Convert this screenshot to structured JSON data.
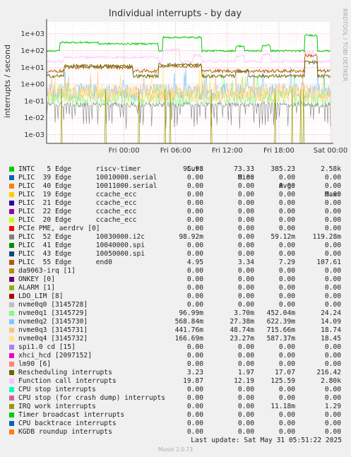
{
  "chart_data": {
    "type": "line",
    "title": "Individual interrupts - by day",
    "ylabel": "interrupts / second",
    "yscale": "log",
    "ylim": [
      0.0003,
      5000
    ],
    "yticks": [
      {
        "value": 0.001,
        "label": "1e-03"
      },
      {
        "value": 0.01,
        "label": "1e-02"
      },
      {
        "value": 0.1,
        "label": "1e-01"
      },
      {
        "value": 1,
        "label": "1e+00"
      },
      {
        "value": 10,
        "label": "1e+01"
      },
      {
        "value": 100,
        "label": "1e+02"
      },
      {
        "value": 1000,
        "label": "1e+03"
      }
    ],
    "xlim_hours": [
      -9,
      24
    ],
    "xticks": [
      {
        "hour": 0,
        "label": "Fri 00:00"
      },
      {
        "hour": 6,
        "label": "Fri 06:00"
      },
      {
        "hour": 12,
        "label": "Fri 12:00"
      },
      {
        "hour": 18,
        "label": "Fri 18:00"
      },
      {
        "hour": 24,
        "label": "Sat 00:00"
      }
    ],
    "grid": true,
    "series": [
      {
        "name": "INTC   5 Edge      riscv-timer",
        "color": "#00cc00",
        "cur": "95.98",
        "min": "73.33",
        "avg": "385.23",
        "max": "2.58k"
      },
      {
        "name": "PLIC  39 Edge      10010000.serial",
        "color": "#0066b3",
        "cur": "0.00",
        "min": "0.00",
        "avg": "0.00",
        "max": "0.00"
      },
      {
        "name": "PLIC  40 Edge      10011000.serial",
        "color": "#ff8000",
        "cur": "0.00",
        "min": "0.00",
        "avg": "0.00",
        "max": "0.00"
      },
      {
        "name": "PLIC  19 Edge      ccache_ecc",
        "color": "#ffcc00",
        "cur": "0.00",
        "min": "0.00",
        "avg": "0.00",
        "max": "0.00"
      },
      {
        "name": "PLIC  21 Edge      ccache_ecc",
        "color": "#330099",
        "cur": "0.00",
        "min": "0.00",
        "avg": "0.00",
        "max": "0.00"
      },
      {
        "name": "PLIC  22 Edge      ccache_ecc",
        "color": "#990099",
        "cur": "0.00",
        "min": "0.00",
        "avg": "0.00",
        "max": "0.00"
      },
      {
        "name": "PLIC  20 Edge      ccache_ecc",
        "color": "#ccff00",
        "cur": "0.00",
        "min": "0.00",
        "avg": "0.00",
        "max": "0.00"
      },
      {
        "name": "PCIe PME, aerdrv [0]",
        "color": "#ff0000",
        "cur": "0.00",
        "min": "0.00",
        "avg": "0.00",
        "max": "0.00"
      },
      {
        "name": "PLIC  52 Edge      10030000.i2c",
        "color": "#808080",
        "cur": "98.92m",
        "min": "0.00",
        "avg": "59.12m",
        "max": "119.28m"
      },
      {
        "name": "PLIC  41 Edge      10040000.spi",
        "color": "#008f00",
        "cur": "0.00",
        "min": "0.00",
        "avg": "0.00",
        "max": "0.00"
      },
      {
        "name": "PLIC  43 Edge      10050000.spi",
        "color": "#00487d",
        "cur": "0.00",
        "min": "0.00",
        "avg": "0.00",
        "max": "0.00"
      },
      {
        "name": "PLIC  55 Edge      end0",
        "color": "#b35a00",
        "cur": "4.95",
        "min": "3.34",
        "avg": "7.29",
        "max": "107.61"
      },
      {
        "name": "da9063-irq [1]",
        "color": "#b38f00",
        "cur": "0.00",
        "min": "0.00",
        "avg": "0.00",
        "max": "0.00"
      },
      {
        "name": "ONKEY [0]",
        "color": "#6b006b",
        "cur": "0.00",
        "min": "0.00",
        "avg": "0.00",
        "max": "0.00"
      },
      {
        "name": "ALARM [1]",
        "color": "#8fb300",
        "cur": "0.00",
        "min": "0.00",
        "avg": "0.00",
        "max": "0.00"
      },
      {
        "name": "LDO_LIM [8]",
        "color": "#b30000",
        "cur": "0.00",
        "min": "0.00",
        "avg": "0.00",
        "max": "0.00"
      },
      {
        "name": "nvme0q0 [3145728]",
        "color": "#bebebe",
        "cur": "0.00",
        "min": "0.00",
        "avg": "0.00",
        "max": "0.00"
      },
      {
        "name": "nvme0q1 [3145729]",
        "color": "#80ff80",
        "cur": "96.99m",
        "min": "3.70m",
        "avg": "452.04m",
        "max": "24.24"
      },
      {
        "name": "nvme0q2 [3145730]",
        "color": "#80c9ff",
        "cur": "568.84m",
        "min": "27.38m",
        "avg": "622.39m",
        "max": "14.09"
      },
      {
        "name": "nvme0q3 [3145731]",
        "color": "#ffc080",
        "cur": "441.76m",
        "min": "48.74m",
        "avg": "715.66m",
        "max": "18.74"
      },
      {
        "name": "nvme0q4 [3145732]",
        "color": "#ffe680",
        "cur": "166.69m",
        "min": "23.27m",
        "avg": "587.37m",
        "max": "18.45"
      },
      {
        "name": "spi1.0 cd [15]",
        "color": "#aa80ff",
        "cur": "0.00",
        "min": "0.00",
        "avg": "0.00",
        "max": "0.00"
      },
      {
        "name": "xhci_hcd [2097152]",
        "color": "#ee00cc",
        "cur": "0.00",
        "min": "0.00",
        "avg": "0.00",
        "max": "0.00"
      },
      {
        "name": "lm90 [6]",
        "color": "#ff8080",
        "cur": "0.00",
        "min": "0.00",
        "avg": "0.00",
        "max": "0.00"
      },
      {
        "name": "Rescheduling interrupts",
        "color": "#666600",
        "cur": "3.23",
        "min": "1.97",
        "avg": "17.07",
        "max": "216.42"
      },
      {
        "name": "Function call interrupts",
        "color": "#ffbfff",
        "cur": "19.87",
        "min": "12.19",
        "avg": "125.59",
        "max": "2.80k"
      },
      {
        "name": "CPU stop interrupts",
        "color": "#00ffcc",
        "cur": "0.00",
        "min": "0.00",
        "avg": "0.00",
        "max": "0.00"
      },
      {
        "name": "CPU stop (for crash dump) interrupts",
        "color": "#cc6699",
        "cur": "0.00",
        "min": "0.00",
        "avg": "0.00",
        "max": "0.00"
      },
      {
        "name": "IRQ work interrupts",
        "color": "#999900",
        "cur": "0.00",
        "min": "0.00",
        "avg": "11.18m",
        "max": "1.29"
      },
      {
        "name": "Timer broadcast interrupts",
        "color": "#00cc00",
        "cur": "0.00",
        "min": "0.00",
        "avg": "0.00",
        "max": "0.00"
      },
      {
        "name": "CPU backtrace interrupts",
        "color": "#0066b3",
        "cur": "0.00",
        "min": "0.00",
        "avg": "0.00",
        "max": "0.00"
      },
      {
        "name": "KGDB roundup interrupts",
        "color": "#ff8000",
        "cur": "0.00",
        "min": "0.00",
        "avg": "0.00",
        "max": "0.00"
      }
    ]
  },
  "legend_header": {
    "cur": "Cur:",
    "min": "Min:",
    "avg": "Avg:",
    "max": "Max:"
  },
  "last_update": "Last update: Sat May 31 05:51:22 2025",
  "side_text": "RRDTOOL / TOBI OETIKER",
  "footer": "Munin 2.0.73"
}
